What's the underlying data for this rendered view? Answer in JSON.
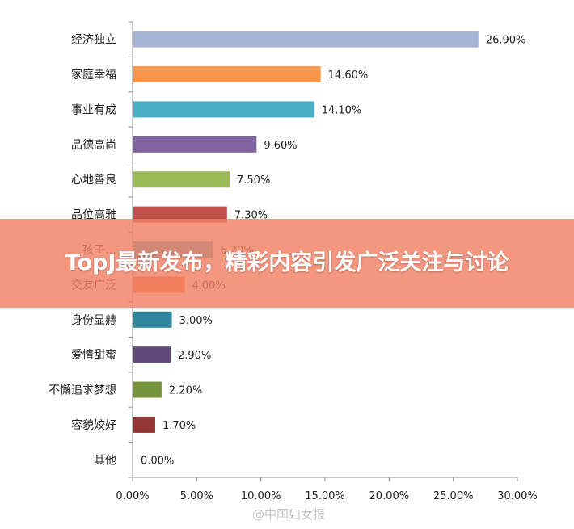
{
  "chart_data": {
    "type": "bar",
    "orientation": "horizontal",
    "categories": [
      "经济独立",
      "家庭幸福",
      "事业有成",
      "品德高尚",
      "心地善良",
      "品位高雅",
      "孩子…",
      "交友广泛",
      "身份显赫",
      "爱情甜蜜",
      "不懈追求梦想",
      "容貌姣好",
      "其他"
    ],
    "values": [
      26.9,
      14.6,
      14.1,
      9.6,
      7.5,
      7.3,
      6.2,
      4.0,
      3.0,
      2.9,
      2.2,
      1.7,
      0.0
    ],
    "value_labels": [
      "26.90%",
      "14.60%",
      "14.10%",
      "9.60%",
      "7.50%",
      "7.30%",
      "6.20%",
      "4.00%",
      "3.00%",
      "2.90%",
      "2.20%",
      "1.70%",
      "0.00%"
    ],
    "colors": [
      "#a6b4d6",
      "#f7954a",
      "#4aaec6",
      "#8064a2",
      "#9bbb59",
      "#c0504d",
      "#4bacc6",
      "#f07b3f",
      "#31859c",
      "#604a7b",
      "#77933c",
      "#953735",
      "#4f81bd"
    ],
    "xlim": [
      0,
      30
    ],
    "x_ticks": [
      "0.00%",
      "5.00%",
      "10.00%",
      "15.00%",
      "20.00%",
      "25.00%",
      "30.00%"
    ],
    "grid": false,
    "xlabel": "",
    "ylabel": ""
  },
  "overlay": {
    "banner_title": "TopJ最新发布，精彩内容引发广泛关注与讨论",
    "banner_color": "#f08064"
  },
  "watermark": {
    "text": "@中国妇女报"
  }
}
